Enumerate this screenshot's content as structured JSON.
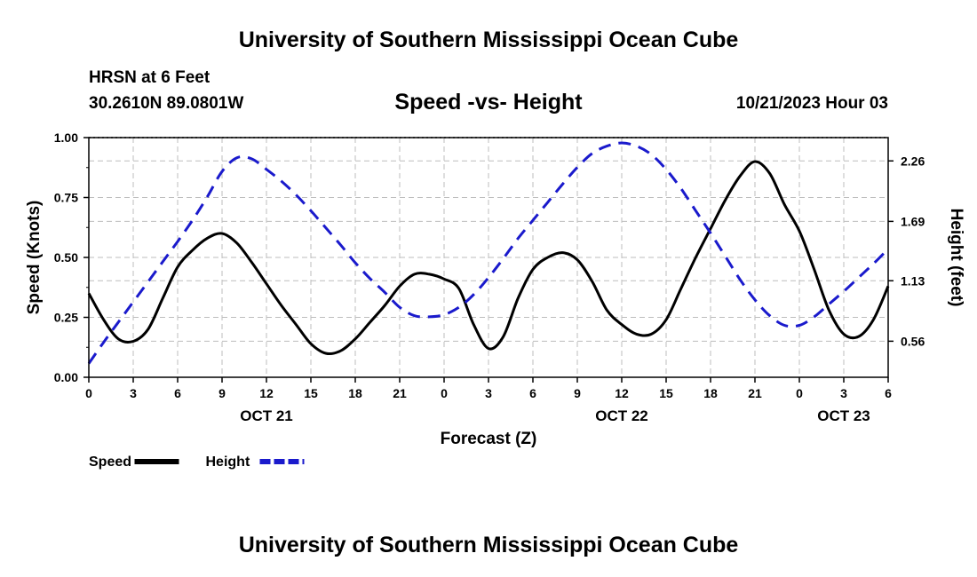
{
  "header": {
    "title": "University of Southern Mississippi Ocean Cube",
    "station": "HRSN at 6 Feet",
    "coords": "30.2610N  89.0801W",
    "subtitle": "Speed -vs- Height",
    "datetime": "10/21/2023 Hour 03"
  },
  "footer": {
    "title": "University of Southern Mississippi Ocean Cube"
  },
  "colors": {
    "speed": "#000000",
    "height": "#1a1acc",
    "grid": "#bdbdbd"
  },
  "chart_data": {
    "type": "line",
    "title": "Speed -vs- Height",
    "xlabel": "Forecast (Z)",
    "ylabel": "Speed (Knots)",
    "y2label": "Height (feet)",
    "xlim": [
      0,
      54
    ],
    "ylim": [
      0,
      1
    ],
    "y2lim": [
      0.22,
      2.48
    ],
    "x_tick_values": [
      0,
      3,
      6,
      9,
      12,
      15,
      18,
      21,
      24,
      27,
      30,
      33,
      36,
      39,
      42,
      45,
      48,
      51,
      54
    ],
    "x_tick_labels": [
      "0",
      "3",
      "6",
      "9",
      "12",
      "15",
      "18",
      "21",
      "0",
      "3",
      "6",
      "9",
      "12",
      "15",
      "18",
      "21",
      "0",
      "3",
      "6"
    ],
    "date_labels": [
      {
        "x": 12,
        "label": "OCT 21"
      },
      {
        "x": 36,
        "label": "OCT 22"
      },
      {
        "x": 51,
        "label": "OCT 23"
      }
    ],
    "y_ticks": [
      0,
      0.25,
      0.5,
      0.75,
      1.0
    ],
    "y_tick_labels": [
      "0.00",
      "0.25",
      "0.50",
      "0.75",
      "1.00"
    ],
    "y2_ticks": [
      0.56,
      1.13,
      1.69,
      2.26
    ],
    "y2_tick_labels": [
      "0.56",
      "1.13",
      "1.69",
      "2.26"
    ],
    "legend": [
      {
        "name": "Speed",
        "style": "solid"
      },
      {
        "name": "Height",
        "style": "dashed"
      }
    ],
    "series": [
      {
        "name": "Speed",
        "axis": "left",
        "style": "solid",
        "x": [
          0,
          1,
          2,
          3,
          4,
          5,
          6,
          7,
          8,
          9,
          10,
          11,
          12,
          13,
          14,
          15,
          16,
          17,
          18,
          19,
          20,
          21,
          22,
          23,
          24,
          25,
          26,
          27,
          28,
          29,
          30,
          31,
          32,
          33,
          34,
          35,
          36,
          37,
          38,
          39,
          40,
          41,
          42,
          43,
          44,
          45,
          46,
          47,
          48,
          49,
          50,
          51,
          52,
          53,
          54
        ],
        "values": [
          0.35,
          0.24,
          0.16,
          0.15,
          0.2,
          0.33,
          0.46,
          0.53,
          0.58,
          0.6,
          0.56,
          0.48,
          0.39,
          0.3,
          0.22,
          0.14,
          0.1,
          0.11,
          0.16,
          0.23,
          0.3,
          0.38,
          0.43,
          0.43,
          0.41,
          0.37,
          0.22,
          0.12,
          0.17,
          0.33,
          0.45,
          0.5,
          0.52,
          0.49,
          0.4,
          0.28,
          0.22,
          0.18,
          0.18,
          0.24,
          0.37,
          0.5,
          0.62,
          0.74,
          0.84,
          0.9,
          0.85,
          0.72,
          0.61,
          0.45,
          0.28,
          0.18,
          0.17,
          0.24,
          0.38
        ]
      },
      {
        "name": "Height",
        "axis": "right",
        "style": "dashed",
        "x": [
          0,
          1,
          2,
          3,
          4,
          5,
          6,
          7,
          8,
          9,
          10,
          11,
          12,
          13,
          14,
          15,
          16,
          17,
          18,
          19,
          20,
          21,
          22,
          23,
          24,
          25,
          26,
          27,
          28,
          29,
          30,
          31,
          32,
          33,
          34,
          35,
          36,
          37,
          38,
          39,
          40,
          41,
          42,
          43,
          44,
          45,
          46,
          47,
          48,
          49,
          50,
          51,
          52,
          53,
          54
        ],
        "values": [
          0.35,
          0.55,
          0.74,
          0.93,
          1.12,
          1.31,
          1.5,
          1.7,
          1.92,
          2.16,
          2.29,
          2.28,
          2.18,
          2.07,
          1.94,
          1.79,
          1.63,
          1.47,
          1.3,
          1.15,
          1.02,
          0.88,
          0.8,
          0.79,
          0.81,
          0.88,
          1.0,
          1.16,
          1.34,
          1.53,
          1.7,
          1.87,
          2.04,
          2.2,
          2.33,
          2.4,
          2.43,
          2.4,
          2.32,
          2.18,
          2.0,
          1.79,
          1.58,
          1.36,
          1.14,
          0.95,
          0.8,
          0.71,
          0.71,
          0.79,
          0.91,
          1.03,
          1.16,
          1.29,
          1.43
        ]
      }
    ]
  }
}
